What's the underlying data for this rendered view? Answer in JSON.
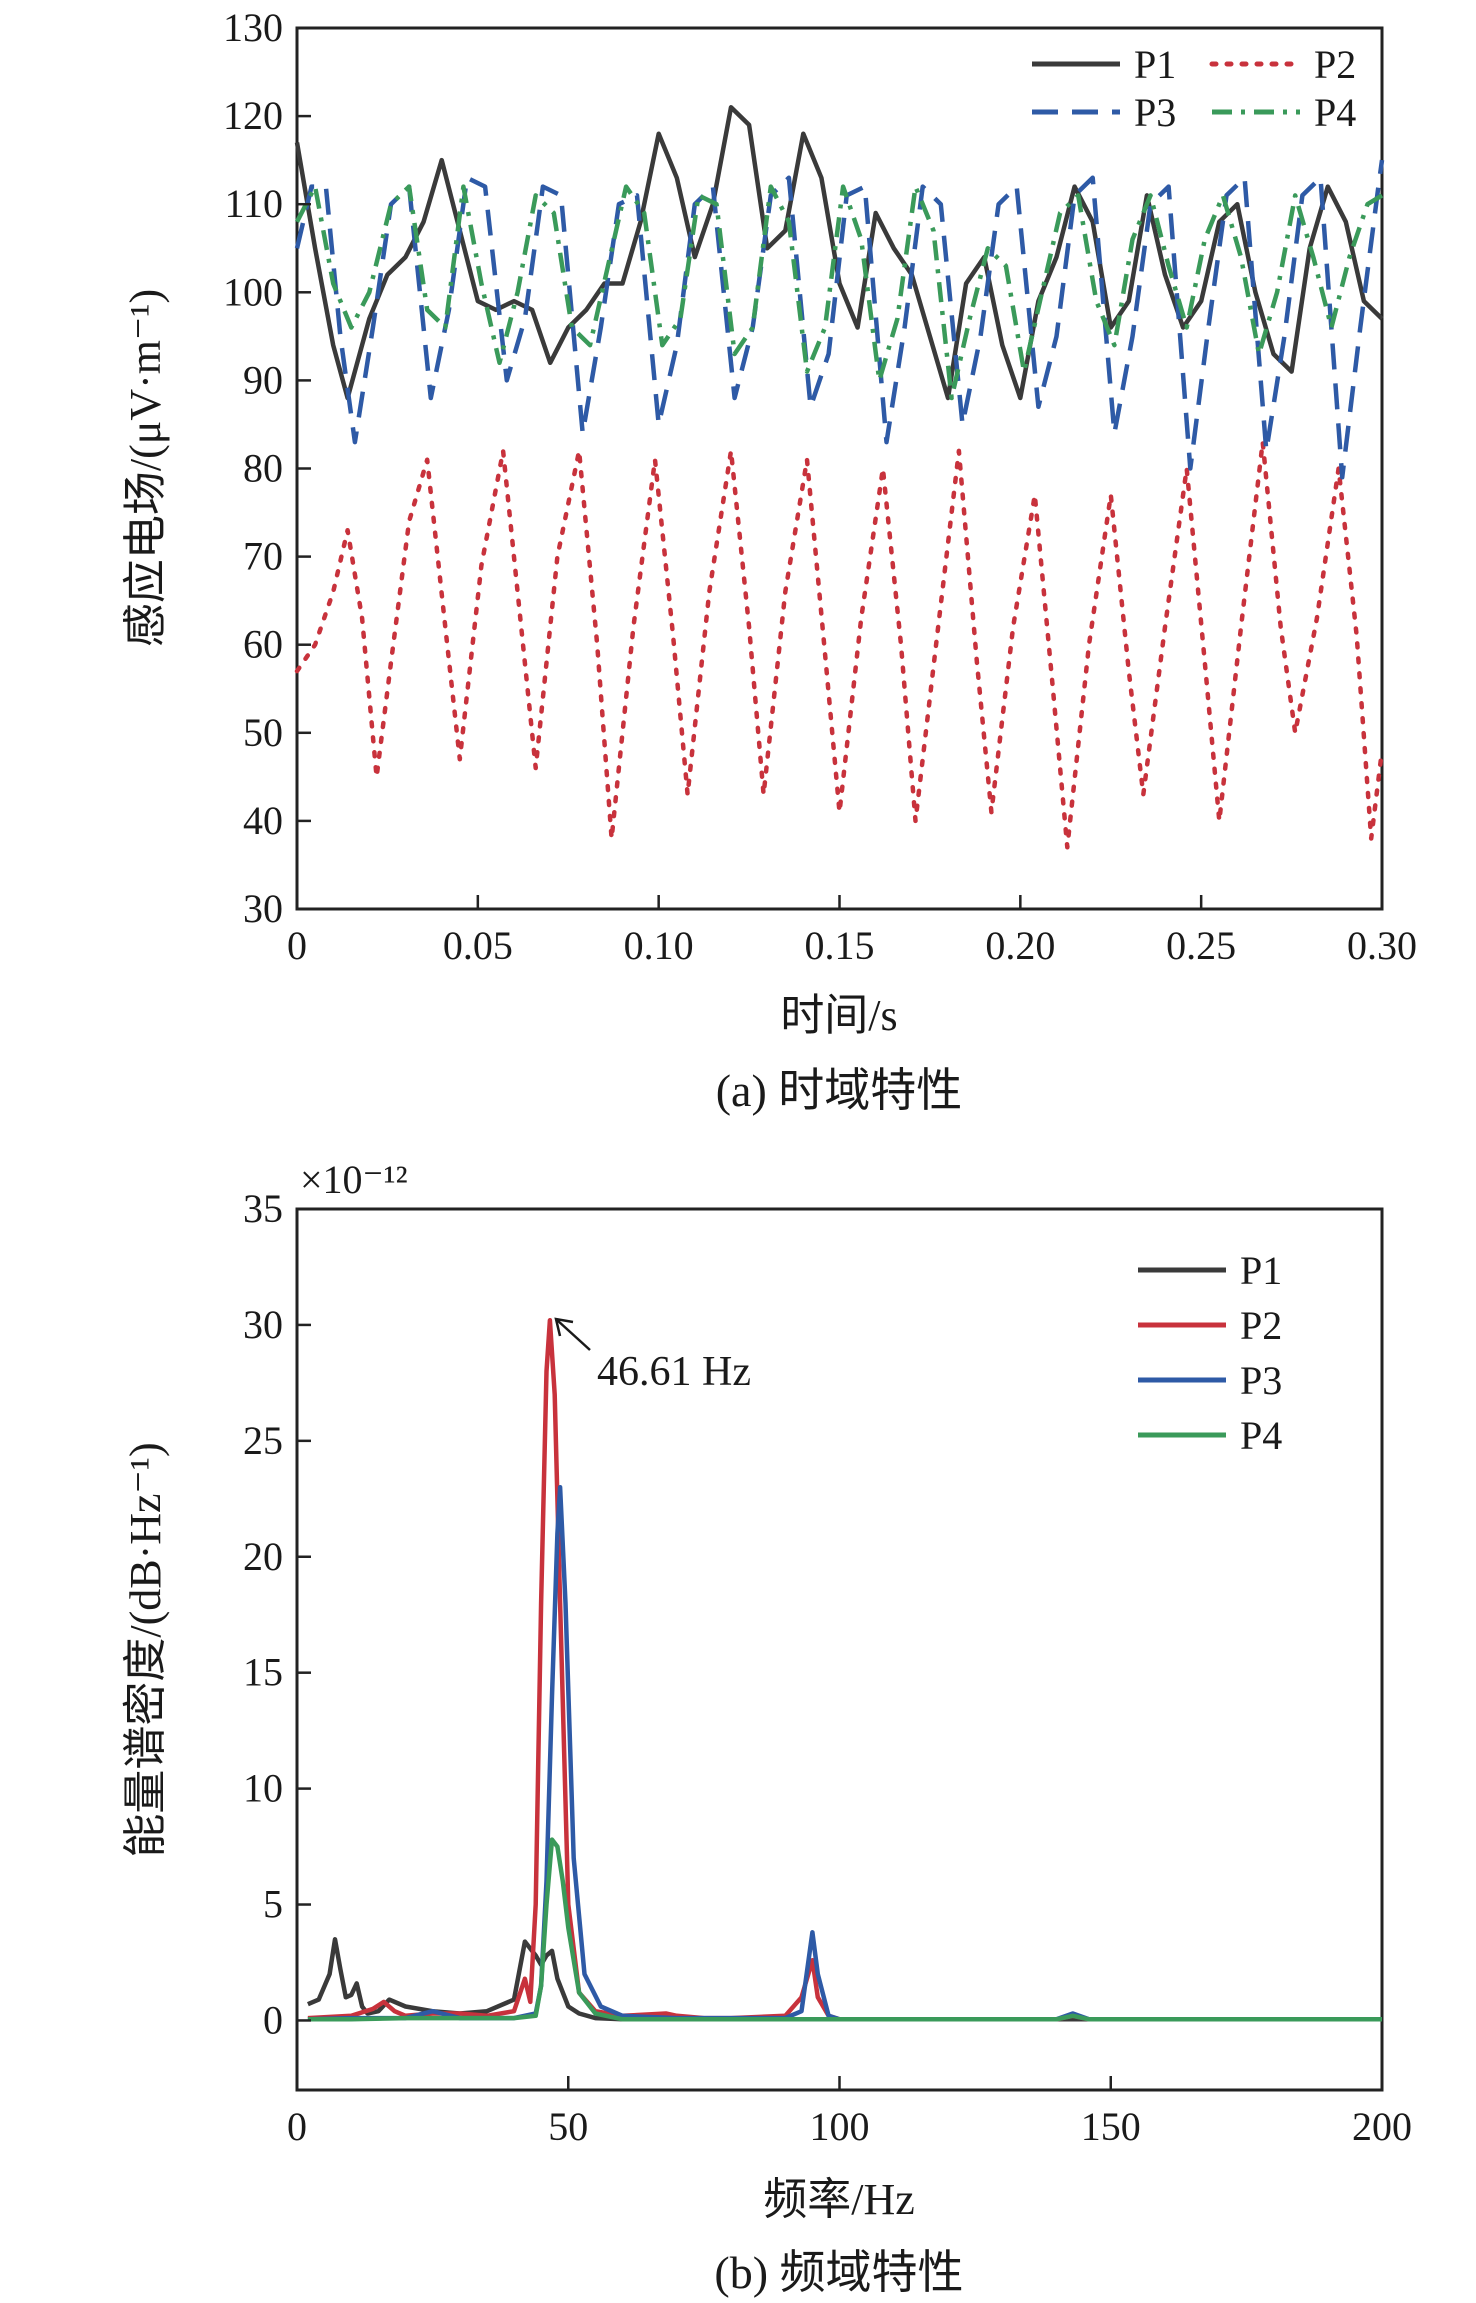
{
  "chart_data": [
    {
      "type": "line",
      "caption": "(a) 时域特性",
      "xlabel": "时间/s",
      "ylabel": "感应电场/(μV·m⁻¹)",
      "xlim": [
        0,
        0.3
      ],
      "ylim": [
        30,
        130
      ],
      "xticks": [
        "0",
        "0.05",
        "0.10",
        "0.15",
        "0.20",
        "0.25",
        "0.30"
      ],
      "xtick_values": [
        0,
        0.05,
        0.1,
        0.15,
        0.2,
        0.25,
        0.3
      ],
      "yticks": [
        "30",
        "40",
        "50",
        "60",
        "70",
        "80",
        "90",
        "100",
        "110",
        "120",
        "130"
      ],
      "ytick_values": [
        30,
        40,
        50,
        60,
        70,
        80,
        90,
        100,
        110,
        120,
        130
      ],
      "legend_position": "top-right",
      "legend_columns": 2,
      "grid": false,
      "series": [
        {
          "name": "P1",
          "color": "#3a3a3a",
          "style": "solid",
          "x": [
            0,
            0.005,
            0.01,
            0.014,
            0.02,
            0.025,
            0.03,
            0.035,
            0.04,
            0.045,
            0.05,
            0.055,
            0.06,
            0.065,
            0.07,
            0.075,
            0.08,
            0.085,
            0.09,
            0.095,
            0.1,
            0.105,
            0.11,
            0.115,
            0.12,
            0.125,
            0.13,
            0.135,
            0.14,
            0.145,
            0.15,
            0.155,
            0.16,
            0.165,
            0.17,
            0.175,
            0.18,
            0.185,
            0.19,
            0.195,
            0.2,
            0.205,
            0.21,
            0.215,
            0.22,
            0.225,
            0.23,
            0.235,
            0.24,
            0.245,
            0.25,
            0.255,
            0.26,
            0.265,
            0.27,
            0.275,
            0.28,
            0.285,
            0.29,
            0.295,
            0.3
          ],
          "y": [
            117,
            105,
            94,
            88,
            97,
            102,
            104,
            108,
            115,
            107,
            99,
            98,
            99,
            98,
            92,
            96,
            98,
            101,
            101,
            108,
            118,
            113,
            104,
            110,
            121,
            119,
            105,
            107,
            118,
            113,
            101,
            96,
            109,
            105,
            102,
            95,
            88,
            101,
            104,
            94,
            88,
            99,
            104,
            112,
            108,
            96,
            99,
            111,
            102,
            96,
            99,
            108,
            110,
            100,
            93,
            91,
            105,
            112,
            108,
            99,
            97
          ]
        },
        {
          "name": "P2",
          "color": "#c8323c",
          "style": "dotted",
          "x": [
            0,
            0.005,
            0.01,
            0.014,
            0.018,
            0.022,
            0.026,
            0.031,
            0.036,
            0.041,
            0.045,
            0.051,
            0.057,
            0.062,
            0.066,
            0.072,
            0.078,
            0.083,
            0.087,
            0.093,
            0.099,
            0.104,
            0.108,
            0.114,
            0.12,
            0.125,
            0.129,
            0.135,
            0.141,
            0.146,
            0.15,
            0.156,
            0.162,
            0.167,
            0.171,
            0.177,
            0.183,
            0.188,
            0.192,
            0.198,
            0.204,
            0.209,
            0.213,
            0.219,
            0.225,
            0.23,
            0.234,
            0.24,
            0.246,
            0.251,
            0.255,
            0.261,
            0.267,
            0.272,
            0.276,
            0.282,
            0.288,
            0.293,
            0.297,
            0.3
          ],
          "y": [
            57,
            60,
            66,
            73,
            63,
            45,
            58,
            74,
            81,
            62,
            47,
            69,
            82,
            62,
            46,
            70,
            82,
            60,
            38,
            62,
            81,
            61,
            43,
            66,
            82,
            62,
            43,
            66,
            81,
            59,
            41,
            63,
            80,
            60,
            40,
            61,
            82,
            58,
            41,
            62,
            77,
            55,
            37,
            60,
            77,
            57,
            43,
            62,
            80,
            58,
            40,
            62,
            83,
            62,
            50,
            63,
            80,
            61,
            38,
            48
          ]
        },
        {
          "name": "P3",
          "color": "#2e5aa6",
          "style": "dashed",
          "x": [
            0,
            0.004,
            0.008,
            0.012,
            0.016,
            0.021,
            0.026,
            0.031,
            0.037,
            0.042,
            0.047,
            0.052,
            0.058,
            0.063,
            0.068,
            0.073,
            0.079,
            0.084,
            0.089,
            0.094,
            0.1,
            0.105,
            0.11,
            0.115,
            0.121,
            0.126,
            0.131,
            0.136,
            0.142,
            0.147,
            0.152,
            0.157,
            0.163,
            0.168,
            0.173,
            0.178,
            0.184,
            0.189,
            0.194,
            0.199,
            0.205,
            0.21,
            0.215,
            0.22,
            0.226,
            0.231,
            0.236,
            0.241,
            0.247,
            0.252,
            0.257,
            0.262,
            0.268,
            0.273,
            0.278,
            0.283,
            0.289,
            0.294,
            0.299,
            0.3
          ],
          "y": [
            105,
            112,
            112,
            95,
            83,
            96,
            110,
            112,
            88,
            98,
            113,
            112,
            90,
            97,
            112,
            111,
            84,
            96,
            110,
            111,
            85,
            94,
            110,
            112,
            88,
            96,
            111,
            113,
            87,
            93,
            111,
            112,
            83,
            96,
            112,
            110,
            85,
            95,
            110,
            112,
            87,
            95,
            111,
            113,
            84,
            95,
            110,
            112,
            80,
            96,
            111,
            113,
            82,
            95,
            111,
            113,
            79,
            96,
            112,
            115
          ]
        },
        {
          "name": "P4",
          "color": "#3a9a5a",
          "style": "dashdot",
          "x": [
            0,
            0.005,
            0.01,
            0.015,
            0.02,
            0.026,
            0.031,
            0.036,
            0.041,
            0.046,
            0.051,
            0.056,
            0.061,
            0.066,
            0.071,
            0.076,
            0.081,
            0.086,
            0.091,
            0.096,
            0.101,
            0.106,
            0.111,
            0.116,
            0.121,
            0.126,
            0.131,
            0.136,
            0.141,
            0.146,
            0.151,
            0.156,
            0.161,
            0.166,
            0.171,
            0.176,
            0.181,
            0.186,
            0.191,
            0.196,
            0.201,
            0.206,
            0.211,
            0.216,
            0.221,
            0.226,
            0.231,
            0.236,
            0.241,
            0.246,
            0.251,
            0.256,
            0.261,
            0.266,
            0.271,
            0.276,
            0.281,
            0.286,
            0.291,
            0.296,
            0.3
          ],
          "y": [
            108,
            112,
            101,
            96,
            100,
            110,
            112,
            98,
            96,
            112,
            101,
            92,
            100,
            111,
            109,
            96,
            94,
            103,
            112,
            109,
            94,
            97,
            111,
            110,
            93,
            96,
            112,
            108,
            91,
            96,
            112,
            106,
            90,
            97,
            112,
            107,
            88,
            97,
            105,
            103,
            91,
            100,
            109,
            111,
            99,
            94,
            106,
            111,
            103,
            96,
            106,
            111,
            104,
            93,
            100,
            111,
            104,
            96,
            104,
            110,
            111
          ]
        }
      ]
    },
    {
      "type": "line",
      "caption": "(b) 频域特性",
      "xlabel": "频率/Hz",
      "ylabel": "能量谱密度/(dB·Hz⁻¹)",
      "scale_label": "×10⁻¹²",
      "xlim": [
        0,
        200
      ],
      "ylim": [
        -3,
        35
      ],
      "xticks": [
        "0",
        "50",
        "100",
        "150",
        "200"
      ],
      "xtick_values": [
        0,
        50,
        100,
        150,
        200
      ],
      "yticks": [
        "0",
        "5",
        "10",
        "15",
        "20",
        "25",
        "30",
        "35"
      ],
      "ytick_values": [
        0,
        5,
        10,
        15,
        20,
        25,
        30,
        35
      ],
      "legend_position": "top-right",
      "legend_columns": 1,
      "grid": false,
      "annotation": {
        "text": "46.61 Hz",
        "x": 46.61,
        "y": 30.2
      },
      "series": [
        {
          "name": "P1",
          "color": "#3a3a3a",
          "style": "solid",
          "x": [
            2,
            4,
            6,
            7,
            8,
            9,
            10,
            11,
            12,
            13,
            15,
            17,
            20,
            25,
            30,
            35,
            40,
            42,
            44,
            45,
            46,
            47,
            48,
            50,
            52,
            55,
            60,
            80,
            100,
            150,
            200
          ],
          "y": [
            0.7,
            0.9,
            2.0,
            3.5,
            2.2,
            1.0,
            1.1,
            1.6,
            0.6,
            0.3,
            0.4,
            0.9,
            0.6,
            0.4,
            0.3,
            0.4,
            0.9,
            3.4,
            2.8,
            2.4,
            2.8,
            3.0,
            1.8,
            0.6,
            0.3,
            0.1,
            0.05,
            0.05,
            0.05,
            0.05,
            0.05
          ]
        },
        {
          "name": "P2",
          "color": "#c8323c",
          "style": "solid",
          "x": [
            2,
            10,
            14,
            16,
            18,
            20,
            25,
            30,
            35,
            40,
            42,
            43,
            44,
            45,
            46,
            46.61,
            47.5,
            48.5,
            50,
            52,
            55,
            60,
            68,
            70,
            75,
            80,
            90,
            93,
            95,
            96,
            98,
            100,
            140,
            143,
            146,
            200
          ],
          "y": [
            0.1,
            0.2,
            0.5,
            0.8,
            0.4,
            0.2,
            0.3,
            0.3,
            0.2,
            0.4,
            1.8,
            0.8,
            5.0,
            18.0,
            28.0,
            30.2,
            27.0,
            18.0,
            5.0,
            1.2,
            0.4,
            0.2,
            0.3,
            0.2,
            0.1,
            0.1,
            0.2,
            1.0,
            2.6,
            1.0,
            0.2,
            0.05,
            0.05,
            0.2,
            0.05,
            0.05
          ]
        },
        {
          "name": "P3",
          "color": "#2e5aa6",
          "style": "solid",
          "x": [
            2,
            10,
            20,
            25,
            30,
            40,
            44,
            45,
            46,
            47,
            48,
            48.5,
            49.5,
            51,
            53,
            56,
            60,
            70,
            90,
            93,
            95,
            96,
            98,
            100,
            140,
            143,
            146,
            200
          ],
          "y": [
            0.05,
            0.1,
            0.1,
            0.4,
            0.1,
            0.1,
            0.3,
            1.5,
            6.0,
            14.0,
            21.0,
            23.0,
            18.0,
            7.0,
            2.0,
            0.6,
            0.2,
            0.1,
            0.1,
            0.4,
            3.8,
            2.0,
            0.2,
            0.05,
            0.05,
            0.3,
            0.05,
            0.05
          ]
        },
        {
          "name": "P4",
          "color": "#3a9a5a",
          "style": "solid",
          "x": [
            2,
            10,
            20,
            30,
            40,
            44,
            45,
            46,
            47,
            48,
            49,
            50,
            52,
            55,
            60,
            80,
            100,
            140,
            143,
            146,
            200
          ],
          "y": [
            0.05,
            0.05,
            0.1,
            0.1,
            0.1,
            0.2,
            1.5,
            5.0,
            7.8,
            7.5,
            6.0,
            4.0,
            1.2,
            0.3,
            0.05,
            0.05,
            0.05,
            0.05,
            0.2,
            0.05,
            0.05
          ]
        }
      ]
    }
  ]
}
